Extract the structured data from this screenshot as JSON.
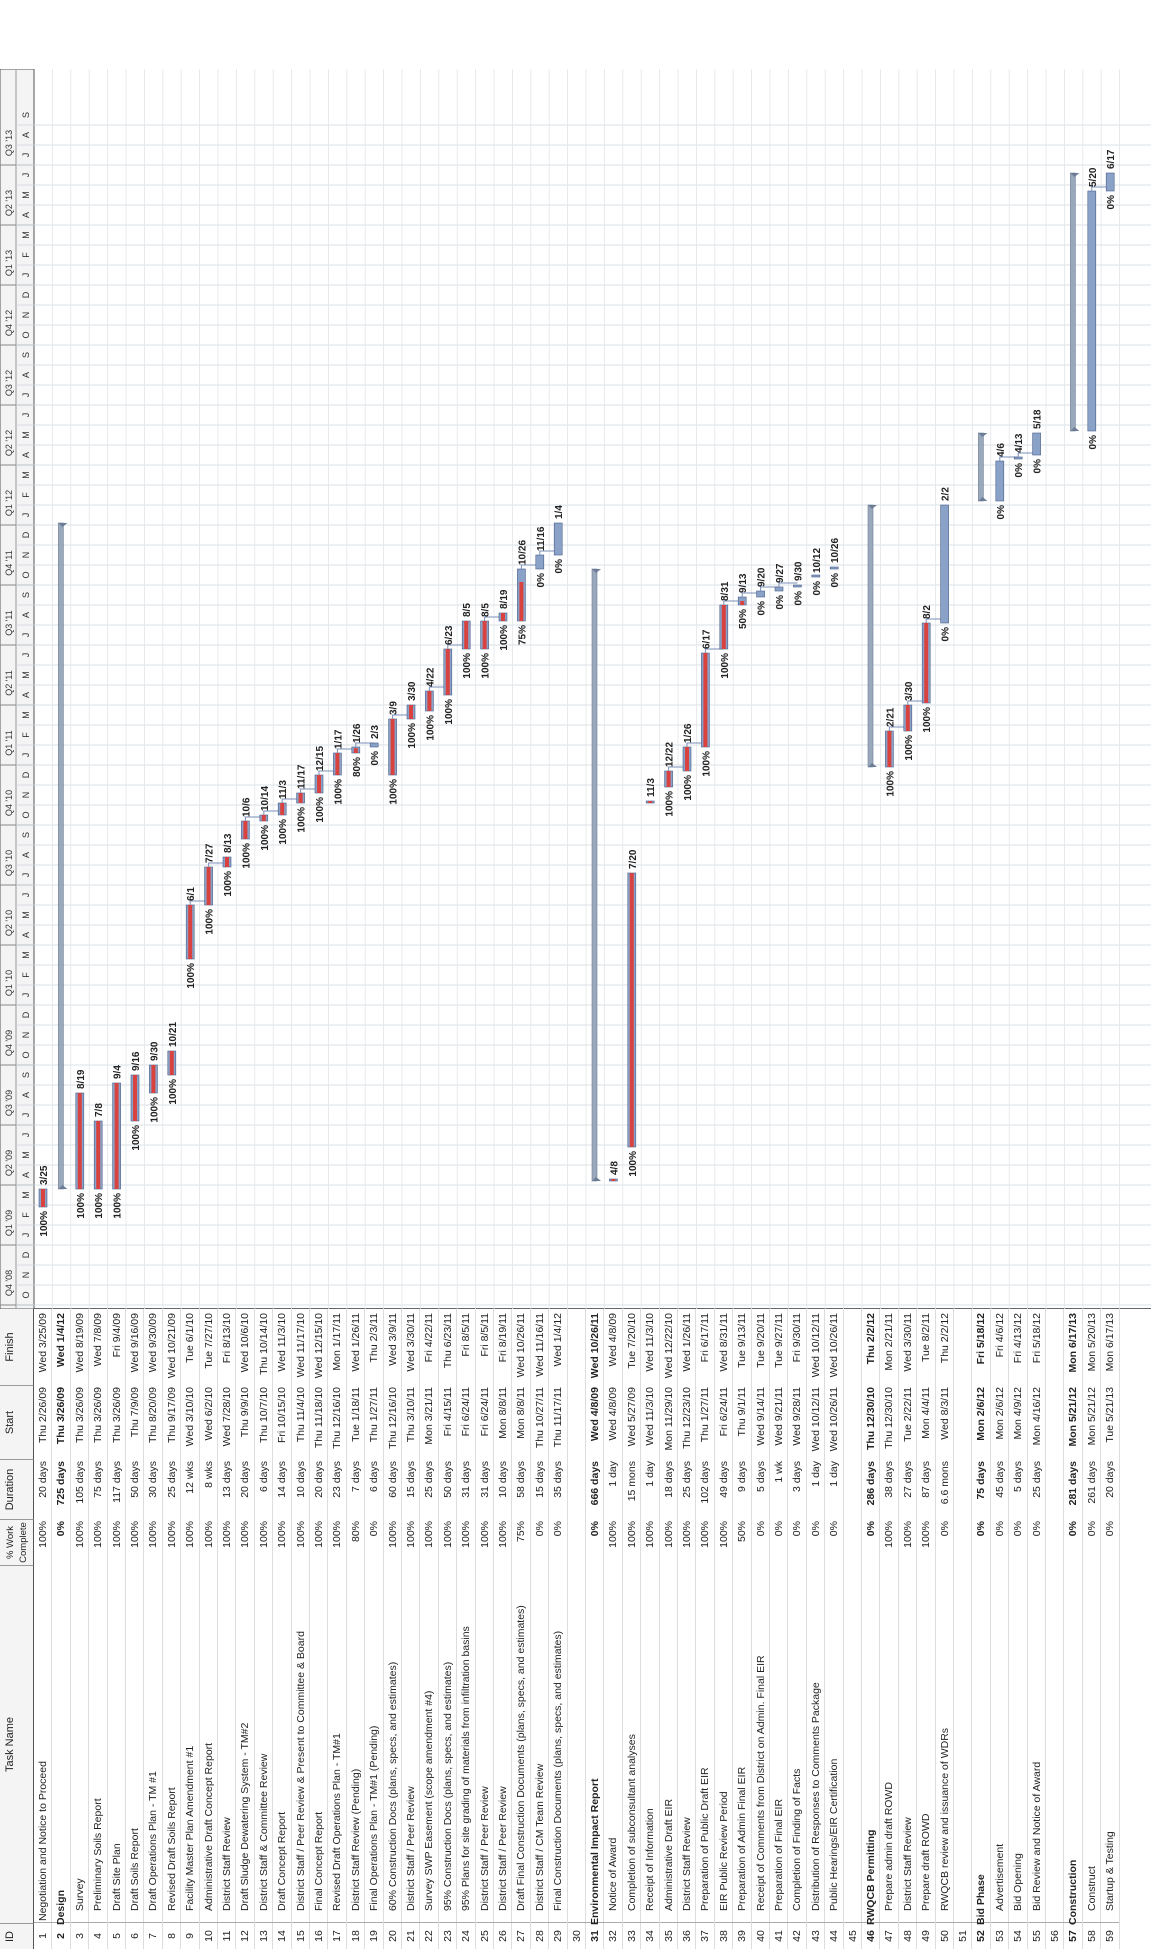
{
  "headers": {
    "id": "ID",
    "task_name": "Task Name",
    "pct": "% Work Complete",
    "duration": "Duration",
    "start": "Start",
    "finish": "Finish"
  },
  "timescale": {
    "quarters": [
      "Q4 '08",
      "Q1 '09",
      "Q2 '09",
      "Q3 '09",
      "Q4 '09",
      "Q1 '10",
      "Q2 '10",
      "Q3 '10",
      "Q4 '10",
      "Q1 '11",
      "Q2 '11",
      "Q3 '11",
      "Q4 '11",
      "Q1 '12",
      "Q2 '12",
      "Q3 '12",
      "Q4 '12",
      "Q1 '13",
      "Q2 '13",
      "Q3 '13"
    ],
    "month_letters": [
      "O",
      "N",
      "D",
      "J",
      "F",
      "M",
      "A",
      "M",
      "J",
      "J",
      "A",
      "S",
      "O",
      "N",
      "D",
      "J",
      "F",
      "M",
      "A",
      "M",
      "J",
      "J",
      "A",
      "S",
      "O",
      "N",
      "D",
      "J",
      "F",
      "M",
      "A",
      "M",
      "J",
      "J",
      "A",
      "S",
      "O",
      "N",
      "D",
      "J",
      "F",
      "M",
      "A",
      "M",
      "J",
      "J",
      "A",
      "S",
      "O",
      "N",
      "D",
      "J",
      "F",
      "M",
      "A",
      "M",
      "J",
      "J",
      "A",
      "S"
    ]
  },
  "colors": {
    "bar_done": "#d9433f",
    "bar_todo": "#8aa2c8",
    "summary": "#9aa8bc",
    "link": "#7a8fb8"
  },
  "tasks": [
    {
      "id": "1",
      "name": "Negotiation and Notice to Proceed",
      "pct": "100%",
      "dur": "20 days",
      "start": "Thu 2/26/09",
      "finish": "Wed 3/25/09",
      "level": 1,
      "s": 4.9,
      "f": 5.8,
      "lab": "3/25",
      "plab": "100%"
    },
    {
      "id": "2",
      "name": "Design",
      "pct": "0%",
      "dur": "725 days",
      "start": "Thu 3/26/09",
      "finish": "Wed 1/4/12",
      "level": 0,
      "s": 5.8,
      "f": 39.1,
      "lab": "",
      "plab": ""
    },
    {
      "id": "3",
      "name": "Survey",
      "pct": "100%",
      "dur": "105 days",
      "start": "Thu 3/26/09",
      "finish": "Wed 8/19/09",
      "level": 2,
      "s": 5.8,
      "f": 10.6,
      "lab": "8/19",
      "plab": "100%"
    },
    {
      "id": "4",
      "name": "Preliminary Soils Report",
      "pct": "100%",
      "dur": "75 days",
      "start": "Thu 3/26/09",
      "finish": "Wed 7/8/09",
      "level": 2,
      "s": 5.8,
      "f": 9.2,
      "lab": "7/8",
      "plab": "100%"
    },
    {
      "id": "5",
      "name": "Draft Site Plan",
      "pct": "100%",
      "dur": "117 days",
      "start": "Thu 3/26/09",
      "finish": "Fri 9/4/09",
      "level": 2,
      "s": 5.8,
      "f": 11.1,
      "lab": "9/4",
      "plab": "100%"
    },
    {
      "id": "6",
      "name": "Draft Soils Report",
      "pct": "100%",
      "dur": "50 days",
      "start": "Thu 7/9/09",
      "finish": "Wed 9/16/09",
      "level": 2,
      "s": 9.2,
      "f": 11.5,
      "lab": "9/16",
      "plab": "100%"
    },
    {
      "id": "7",
      "name": "Draft Operations Plan - TM #1",
      "pct": "100%",
      "dur": "30 days",
      "start": "Thu 8/20/09",
      "finish": "Wed 9/30/09",
      "level": 2,
      "s": 10.6,
      "f": 12.0,
      "lab": "9/30",
      "plab": "100%"
    },
    {
      "id": "8",
      "name": "Revised Draft Soils Report",
      "pct": "100%",
      "dur": "25 days",
      "start": "Thu 9/17/09",
      "finish": "Wed 10/21/09",
      "level": 2,
      "s": 11.5,
      "f": 12.7,
      "lab": "10/21",
      "plab": "100%"
    },
    {
      "id": "9",
      "name": "Facility Master Plan Amendment #1",
      "pct": "100%",
      "dur": "12 wks",
      "start": "Wed 3/10/10",
      "finish": "Tue 6/1/10",
      "level": 2,
      "s": 17.3,
      "f": 20.0,
      "lab": "6/1",
      "plab": "100%"
    },
    {
      "id": "10",
      "name": "Administrative Draft Concept Report",
      "pct": "100%",
      "dur": "8 wks",
      "start": "Wed 6/2/10",
      "finish": "Tue 7/27/10",
      "level": 2,
      "s": 20.0,
      "f": 21.9,
      "lab": "7/27",
      "plab": "100%"
    },
    {
      "id": "11",
      "name": "District Staff Review",
      "pct": "100%",
      "dur": "13 days",
      "start": "Wed 7/28/10",
      "finish": "Fri 8/13/10",
      "level": 2,
      "s": 21.9,
      "f": 22.4,
      "lab": "8/13",
      "plab": "100%"
    },
    {
      "id": "12",
      "name": "Draft Sludge Dewatering System - TM#2",
      "pct": "100%",
      "dur": "20 days",
      "start": "Thu 9/9/10",
      "finish": "Wed 10/6/10",
      "level": 2,
      "s": 23.3,
      "f": 24.2,
      "lab": "10/6",
      "plab": "100%"
    },
    {
      "id": "13",
      "name": "District Staff & Committee Review",
      "pct": "100%",
      "dur": "6 days",
      "start": "Thu 10/7/10",
      "finish": "Thu 10/14/10",
      "level": 2,
      "s": 24.2,
      "f": 24.5,
      "lab": "10/14",
      "plab": "100%"
    },
    {
      "id": "14",
      "name": "Draft Concept Report",
      "pct": "100%",
      "dur": "14 days",
      "start": "Fri 10/15/10",
      "finish": "Wed 11/3/10",
      "level": 2,
      "s": 24.5,
      "f": 25.1,
      "lab": "11/3",
      "plab": "100%"
    },
    {
      "id": "15",
      "name": "District Staff / Peer Review & Present to Committee & Board",
      "pct": "100%",
      "dur": "10 days",
      "start": "Thu 11/4/10",
      "finish": "Wed 11/17/10",
      "level": 2,
      "s": 25.1,
      "f": 25.6,
      "lab": "11/17",
      "plab": "100%"
    },
    {
      "id": "16",
      "name": "Final Concept Report",
      "pct": "100%",
      "dur": "20 days",
      "start": "Thu 11/18/10",
      "finish": "Wed 12/15/10",
      "level": 2,
      "s": 25.6,
      "f": 26.5,
      "lab": "12/15",
      "plab": "100%"
    },
    {
      "id": "17",
      "name": "Revised Draft Operations Plan - TM#1",
      "pct": "100%",
      "dur": "23 days",
      "start": "Thu 12/16/10",
      "finish": "Mon 1/17/11",
      "level": 2,
      "s": 26.5,
      "f": 27.6,
      "lab": "1/17",
      "plab": "100%"
    },
    {
      "id": "18",
      "name": "District Staff Review (Pending)",
      "pct": "80%",
      "dur": "7 days",
      "start": "Tue 1/18/11",
      "finish": "Wed 1/26/11",
      "level": 2,
      "s": 27.6,
      "f": 27.9,
      "lab": "1/26",
      "plab": "80%"
    },
    {
      "id": "19",
      "name": "Final Operations Plan - TM#1 (Pending)",
      "pct": "0%",
      "dur": "6 days",
      "start": "Thu 1/27/11",
      "finish": "Thu 2/3/11",
      "level": 2,
      "s": 27.9,
      "f": 28.1,
      "lab": "2/3",
      "plab": "0%"
    },
    {
      "id": "20",
      "name": "60% Construction Docs (plans, specs, and estimates)",
      "pct": "100%",
      "dur": "60 days",
      "start": "Thu 12/16/10",
      "finish": "Wed 3/9/11",
      "level": 2,
      "s": 26.5,
      "f": 29.3,
      "lab": "3/9",
      "plab": "100%"
    },
    {
      "id": "21",
      "name": "District Staff / Peer Review",
      "pct": "100%",
      "dur": "15 days",
      "start": "Thu 3/10/11",
      "finish": "Wed 3/30/11",
      "level": 2,
      "s": 29.3,
      "f": 30.0,
      "lab": "3/30",
      "plab": "100%"
    },
    {
      "id": "22",
      "name": "Survey SWP Easement (scope amendment #4)",
      "pct": "100%",
      "dur": "25 days",
      "start": "Mon 3/21/11",
      "finish": "Fri 4/22/11",
      "level": 2,
      "s": 29.7,
      "f": 30.7,
      "lab": "4/22",
      "plab": "100%"
    },
    {
      "id": "23",
      "name": "95% Construction Docs (plans, specs, and estimates)",
      "pct": "100%",
      "dur": "50 days",
      "start": "Fri 4/15/11",
      "finish": "Thu 6/23/11",
      "level": 2,
      "s": 30.5,
      "f": 32.8,
      "lab": "6/23",
      "plab": "100%"
    },
    {
      "id": "24",
      "name": "95% Plans for site grading of materials from infiltration basins",
      "pct": "100%",
      "dur": "31 days",
      "start": "Fri 6/24/11",
      "finish": "Fri 8/5/11",
      "level": 2,
      "s": 32.8,
      "f": 34.2,
      "lab": "8/5",
      "plab": "100%"
    },
    {
      "id": "25",
      "name": "District Staff / Peer Review",
      "pct": "100%",
      "dur": "31 days",
      "start": "Fri 6/24/11",
      "finish": "Fri 8/5/11",
      "level": 2,
      "s": 32.8,
      "f": 34.2,
      "lab": "8/5",
      "plab": "100%"
    },
    {
      "id": "26",
      "name": "District Staff / Peer Review",
      "pct": "100%",
      "dur": "10 days",
      "start": "Mon 8/8/11",
      "finish": "Fri 8/19/11",
      "level": 2,
      "s": 34.2,
      "f": 34.6,
      "lab": "8/19",
      "plab": "100%"
    },
    {
      "id": "27",
      "name": "Draft Final Construction Documents (plans, specs, and estimates)",
      "pct": "75%",
      "dur": "58 days",
      "start": "Mon 8/8/11",
      "finish": "Wed 10/26/11",
      "level": 2,
      "s": 34.2,
      "f": 36.8,
      "lab": "10/26",
      "plab": "75%"
    },
    {
      "id": "28",
      "name": "District Staff / CM Team Review",
      "pct": "0%",
      "dur": "15 days",
      "start": "Thu 10/27/11",
      "finish": "Wed 11/16/11",
      "level": 2,
      "s": 36.8,
      "f": 37.5,
      "lab": "11/16",
      "plab": "0%"
    },
    {
      "id": "29",
      "name": "Final Construction Documents (plans, specs, and estimates)",
      "pct": "0%",
      "dur": "35 days",
      "start": "Thu 11/17/11",
      "finish": "Wed 1/4/12",
      "level": 2,
      "s": 37.5,
      "f": 39.1,
      "lab": "1/4",
      "plab": "0%"
    },
    {
      "id": "30",
      "name": "",
      "pct": "",
      "dur": "",
      "start": "",
      "finish": "",
      "level": -1
    },
    {
      "id": "31",
      "name": "Environmental Impact Report",
      "pct": "0%",
      "dur": "666 days",
      "start": "Wed 4/8/09",
      "finish": "Wed 10/26/11",
      "level": 0,
      "s": 6.2,
      "f": 36.8,
      "lab": "",
      "plab": ""
    },
    {
      "id": "32",
      "name": "Notice of Award",
      "pct": "100%",
      "dur": "1 day",
      "start": "Wed 4/8/09",
      "finish": "Wed 4/8/09",
      "level": 2,
      "s": 6.2,
      "f": 6.3,
      "lab": "4/8",
      "plab": ""
    },
    {
      "id": "33",
      "name": "Completion of subconsultant analyses",
      "pct": "100%",
      "dur": "15 mons",
      "start": "Wed 5/27/09",
      "finish": "Tue 7/20/10",
      "level": 2,
      "s": 7.9,
      "f": 21.6,
      "lab": "7/20",
      "plab": "100%"
    },
    {
      "id": "34",
      "name": "Receipt of Information",
      "pct": "100%",
      "dur": "1 day",
      "start": "Wed 11/3/10",
      "finish": "Wed 11/3/10",
      "level": 2,
      "s": 25.1,
      "f": 25.2,
      "lab": "11/3",
      "plab": ""
    },
    {
      "id": "35",
      "name": "Administrative Draft EIR",
      "pct": "100%",
      "dur": "18 days",
      "start": "Mon 11/29/10",
      "finish": "Wed 12/22/10",
      "level": 2,
      "s": 25.9,
      "f": 26.7,
      "lab": "12/22",
      "plab": "100%"
    },
    {
      "id": "36",
      "name": "District Staff Review",
      "pct": "100%",
      "dur": "25 days",
      "start": "Thu 12/23/10",
      "finish": "Wed 1/26/11",
      "level": 2,
      "s": 26.7,
      "f": 27.9,
      "lab": "1/26",
      "plab": "100%"
    },
    {
      "id": "37",
      "name": "Preparation of Public Draft EIR",
      "pct": "100%",
      "dur": "102 days",
      "start": "Thu 1/27/11",
      "finish": "Fri 6/17/11",
      "level": 2,
      "s": 27.9,
      "f": 32.6,
      "lab": "6/17",
      "plab": "100%"
    },
    {
      "id": "38",
      "name": "EIR Public Review Period",
      "pct": "100%",
      "dur": "49 days",
      "start": "Fri 6/24/11",
      "finish": "Wed 8/31/11",
      "level": 2,
      "s": 32.8,
      "f": 35.0,
      "lab": "8/31",
      "plab": "100%"
    },
    {
      "id": "39",
      "name": "Preparation of Admin Final EIR",
      "pct": "50%",
      "dur": "9 days",
      "start": "Thu 9/1/11",
      "finish": "Tue 9/13/11",
      "level": 2,
      "s": 35.0,
      "f": 35.4,
      "lab": "9/13",
      "plab": "50%"
    },
    {
      "id": "40",
      "name": "Receipt of Comments from District on Admin. Final EIR",
      "pct": "0%",
      "dur": "5 days",
      "start": "Wed 9/14/11",
      "finish": "Tue 9/20/11",
      "level": 2,
      "s": 35.4,
      "f": 35.7,
      "lab": "9/20",
      "plab": "0%"
    },
    {
      "id": "41",
      "name": "Preparation of Final EIR",
      "pct": "0%",
      "dur": "1 wk",
      "start": "Wed 9/21/11",
      "finish": "Tue 9/27/11",
      "level": 2,
      "s": 35.7,
      "f": 35.9,
      "lab": "9/27",
      "plab": "0%"
    },
    {
      "id": "42",
      "name": "Completion of Finding of Facts",
      "pct": "0%",
      "dur": "3 days",
      "start": "Wed 9/28/11",
      "finish": "Fri 9/30/11",
      "level": 2,
      "s": 35.9,
      "f": 36.0,
      "lab": "9/30",
      "plab": "0%"
    },
    {
      "id": "43",
      "name": "Distribution of Responses to Comments Package",
      "pct": "0%",
      "dur": "1 day",
      "start": "Wed 10/12/11",
      "finish": "Wed 10/12/11",
      "level": 2,
      "s": 36.4,
      "f": 36.4,
      "lab": "10/12",
      "plab": "0%"
    },
    {
      "id": "44",
      "name": "Public Hearings/EIR Certification",
      "pct": "0%",
      "dur": "1 day",
      "start": "Wed 10/26/11",
      "finish": "Wed 10/26/11",
      "level": 2,
      "s": 36.8,
      "f": 36.9,
      "lab": "10/26",
      "plab": "0%"
    },
    {
      "id": "45",
      "name": "",
      "pct": "",
      "dur": "",
      "start": "",
      "finish": "",
      "level": -1
    },
    {
      "id": "46",
      "name": "RWQCB Permitting",
      "pct": "0%",
      "dur": "286 days",
      "start": "Thu 12/30/10",
      "finish": "Thu 2/2/12",
      "level": 0,
      "s": 26.9,
      "f": 40.0,
      "lab": "",
      "plab": ""
    },
    {
      "id": "47",
      "name": "Prepare admin draft ROWD",
      "pct": "100%",
      "dur": "38 days",
      "start": "Thu 12/30/10",
      "finish": "Mon 2/21/11",
      "level": 2,
      "s": 26.9,
      "f": 28.7,
      "lab": "2/21",
      "plab": "100%"
    },
    {
      "id": "48",
      "name": "District Staff Review",
      "pct": "100%",
      "dur": "27 days",
      "start": "Tue 2/22/11",
      "finish": "Wed 3/30/11",
      "level": 2,
      "s": 28.7,
      "f": 30.0,
      "lab": "3/30",
      "plab": "100%"
    },
    {
      "id": "49",
      "name": "Prepare draft ROWD",
      "pct": "100%",
      "dur": "87 days",
      "start": "Mon 4/4/11",
      "finish": "Tue 8/2/11",
      "level": 2,
      "s": 30.1,
      "f": 34.1,
      "lab": "8/2",
      "plab": "100%"
    },
    {
      "id": "50",
      "name": "RWQCB review and issuance of WDRs",
      "pct": "0%",
      "dur": "6.6 mons",
      "start": "Wed 8/3/11",
      "finish": "Thu 2/2/12",
      "level": 2,
      "s": 34.1,
      "f": 40.0,
      "lab": "2/2",
      "plab": "0%"
    },
    {
      "id": "51",
      "name": "",
      "pct": "",
      "dur": "",
      "start": "",
      "finish": "",
      "level": -1
    },
    {
      "id": "52",
      "name": "Bid Phase",
      "pct": "0%",
      "dur": "75 days",
      "start": "Mon 2/6/12",
      "finish": "Fri 5/18/12",
      "level": 0,
      "s": 40.2,
      "f": 43.6,
      "lab": "",
      "plab": ""
    },
    {
      "id": "53",
      "name": "Advertisement",
      "pct": "0%",
      "dur": "45 days",
      "start": "Mon 2/6/12",
      "finish": "Fri 4/6/12",
      "level": 2,
      "s": 40.2,
      "f": 42.2,
      "lab": "4/6",
      "plab": "0%"
    },
    {
      "id": "54",
      "name": "Bid Opening",
      "pct": "0%",
      "dur": "5 days",
      "start": "Mon 4/9/12",
      "finish": "Fri 4/13/12",
      "level": 2,
      "s": 42.3,
      "f": 42.4,
      "lab": "4/13",
      "plab": "0%"
    },
    {
      "id": "55",
      "name": "Bid Review and Notice of Award",
      "pct": "0%",
      "dur": "25 days",
      "start": "Mon 4/16/12",
      "finish": "Fri 5/18/12",
      "level": 2,
      "s": 42.5,
      "f": 43.6,
      "lab": "5/18",
      "plab": "0%"
    },
    {
      "id": "56",
      "name": "",
      "pct": "",
      "dur": "",
      "start": "",
      "finish": "",
      "level": -1
    },
    {
      "id": "57",
      "name": "Construction",
      "pct": "0%",
      "dur": "281 days",
      "start": "Mon 5/21/12",
      "finish": "Mon 6/17/13",
      "level": 0,
      "s": 43.7,
      "f": 56.6,
      "lab": "",
      "plab": ""
    },
    {
      "id": "58",
      "name": "Construct",
      "pct": "0%",
      "dur": "261 days",
      "start": "Mon 5/21/12",
      "finish": "Mon 5/20/13",
      "level": 2,
      "s": 43.7,
      "f": 55.7,
      "lab": "5/20",
      "plab": "0%"
    },
    {
      "id": "59",
      "name": "Startup & Testing",
      "pct": "0%",
      "dur": "20 days",
      "start": "Tue 5/21/13",
      "finish": "Mon 6/17/13",
      "level": 2,
      "s": 55.7,
      "f": 56.6,
      "lab": "6/17",
      "plab": "0%"
    }
  ]
}
